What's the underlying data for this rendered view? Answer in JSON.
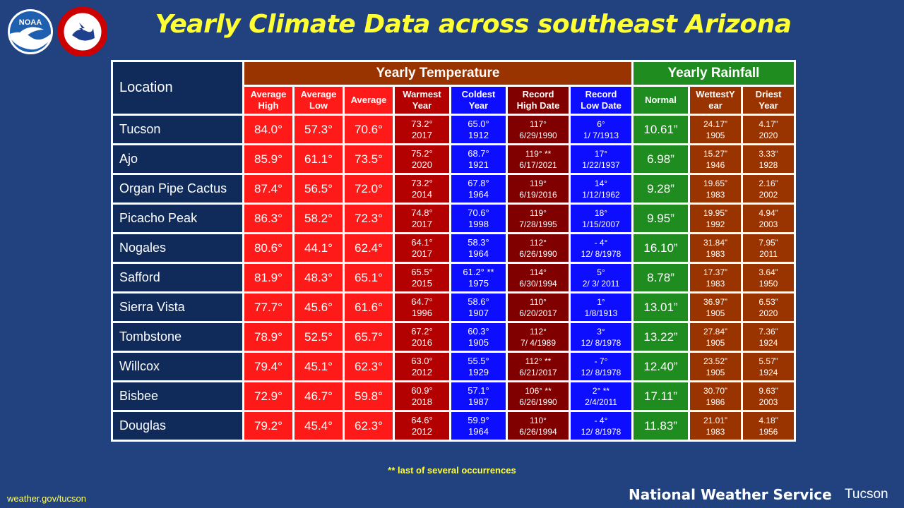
{
  "title": "Yearly Climate Data across southeast Arizona",
  "logos": {
    "noaa_text": "NOAA",
    "nws_text": "NATIONAL WEATHER SERVICE"
  },
  "header": {
    "location": "Location",
    "yearly_temperature": "Yearly Temperature",
    "yearly_rainfall": "Yearly Rainfall",
    "sub": [
      [
        "Average",
        "High"
      ],
      [
        "Average",
        "Low"
      ],
      [
        "Average"
      ],
      [
        "Warmest",
        "Year"
      ],
      [
        "Coldest",
        "Year"
      ],
      [
        "Record",
        "High Date"
      ],
      [
        "Record",
        "Low Date"
      ],
      [
        "Normal"
      ],
      [
        "WettestY",
        "ear"
      ],
      [
        "Driest",
        "Year"
      ]
    ]
  },
  "rows": [
    {
      "location": "Tucson",
      "avg_high": "84.0°",
      "avg_low": "57.3°",
      "average": "70.6°",
      "warmest": [
        "73.2°",
        "2017"
      ],
      "coldest": [
        "65.0°",
        "1912"
      ],
      "rec_high": [
        "117°",
        "6/29/1990"
      ],
      "rec_low": [
        "6°",
        "1/ 7/1913"
      ],
      "normal": "10.61”",
      "wettest": [
        "24.17”",
        "1905"
      ],
      "driest": [
        "4.17”",
        "2020"
      ]
    },
    {
      "location": "Ajo",
      "avg_high": "85.9°",
      "avg_low": "61.1°",
      "average": "73.5°",
      "warmest": [
        "75.2°",
        "2020"
      ],
      "coldest": [
        "68.7°",
        "1921"
      ],
      "rec_high": [
        "119° **",
        "6/17/2021"
      ],
      "rec_low": [
        "17°",
        "1/22/1937"
      ],
      "normal": "6.98”",
      "wettest": [
        "15.27”",
        "1946"
      ],
      "driest": [
        "3.33“",
        "1928"
      ]
    },
    {
      "location": "Organ Pipe Cactus",
      "avg_high": "87.4°",
      "avg_low": "56.5°",
      "average": "72.0°",
      "warmest": [
        "73.2°",
        "2014"
      ],
      "coldest": [
        "67.8°",
        "1964"
      ],
      "rec_high": [
        "119°",
        "6/19/2016"
      ],
      "rec_low": [
        "14°",
        "1/12/1962"
      ],
      "normal": "9.28”",
      "wettest": [
        "19.65”",
        "1983"
      ],
      "driest": [
        "2.16”",
        "2002"
      ]
    },
    {
      "location": "Picacho Peak",
      "avg_high": "86.3°",
      "avg_low": "58.2°",
      "average": "72.3°",
      "warmest": [
        "74.8°",
        "2017"
      ],
      "coldest": [
        "70.6°",
        "1998"
      ],
      "rec_high": [
        "119°",
        "7/28/1995"
      ],
      "rec_low": [
        "18°",
        "1/15/2007"
      ],
      "normal": "9.95”",
      "wettest": [
        "19.95”",
        "1992"
      ],
      "driest": [
        "4.94”",
        "2003"
      ]
    },
    {
      "location": "Nogales",
      "avg_high": "80.6°",
      "avg_low": "44.1°",
      "average": "62.4°",
      "warmest": [
        "64.1°",
        "2017"
      ],
      "coldest": [
        "58.3°",
        "1964"
      ],
      "rec_high": [
        "112°",
        "6/26/1990"
      ],
      "rec_low": [
        "- 4°",
        "12/ 8/1978"
      ],
      "normal": "16.10”",
      "wettest": [
        "31.84”",
        "1983"
      ],
      "driest": [
        "7.95”",
        "2011"
      ]
    },
    {
      "location": "Safford",
      "avg_high": "81.9°",
      "avg_low": "48.3°",
      "average": "65.1°",
      "warmest": [
        "65.5°",
        "2015"
      ],
      "coldest": [
        "61.2° **",
        "1975"
      ],
      "rec_high": [
        "114°",
        "6/30/1994"
      ],
      "rec_low": [
        "5°",
        "2/ 3/ 2011"
      ],
      "normal": "8.78”",
      "wettest": [
        "17.37”",
        "1983"
      ],
      "driest": [
        "3.64”",
        "1950"
      ]
    },
    {
      "location": "Sierra Vista",
      "avg_high": "77.7°",
      "avg_low": "45.6°",
      "average": "61.6°",
      "warmest": [
        "64.7°",
        "1996"
      ],
      "coldest": [
        "58.6°",
        "1907"
      ],
      "rec_high": [
        "110°",
        "6/20/2017"
      ],
      "rec_low": [
        "1°",
        "1/8/1913"
      ],
      "normal": "13.01”",
      "wettest": [
        "36.97”",
        "1905"
      ],
      "driest": [
        "6.53”",
        "2020"
      ]
    },
    {
      "location": "Tombstone",
      "avg_high": "78.9°",
      "avg_low": "52.5°",
      "average": "65.7°",
      "warmest": [
        "67.2°",
        "2016"
      ],
      "coldest": [
        "60.3°",
        "1905"
      ],
      "rec_high": [
        "112°",
        "7/ 4/1989"
      ],
      "rec_low": [
        "3°",
        "12/ 8/1978"
      ],
      "normal": "13.22”",
      "wettest": [
        "27.84”",
        "1905"
      ],
      "driest": [
        "7.36”",
        "1924"
      ]
    },
    {
      "location": "Willcox",
      "avg_high": "79.4°",
      "avg_low": "45.1°",
      "average": "62.3°",
      "warmest": [
        "63.0°",
        "2012"
      ],
      "coldest": [
        "55.5°",
        "1929"
      ],
      "rec_high": [
        "112° **",
        "6/21/2017"
      ],
      "rec_low": [
        "- 7°",
        "12/ 8/1978"
      ],
      "normal": "12.40”",
      "wettest": [
        "23.52”",
        "1905"
      ],
      "driest": [
        "5.57”",
        "1924"
      ]
    },
    {
      "location": "Bisbee",
      "avg_high": "72.9°",
      "avg_low": "46.7°",
      "average": "59.8°",
      "warmest": [
        "60.9°",
        "2018"
      ],
      "coldest": [
        "57.1°",
        "1987"
      ],
      "rec_high": [
        "106° **",
        "6/26/1990"
      ],
      "rec_low": [
        "2° **",
        "2/4/2011"
      ],
      "normal": "17.11”",
      "wettest": [
        "30.70”",
        "1986"
      ],
      "driest": [
        "9.63”",
        "2003"
      ]
    },
    {
      "location": "Douglas",
      "avg_high": "79.2°",
      "avg_low": "45.4°",
      "average": "62.3°",
      "warmest": [
        "64.6°",
        "2012"
      ],
      "coldest": [
        "59.9°",
        "1964"
      ],
      "rec_high": [
        "110°",
        "6/26/1994"
      ],
      "rec_low": [
        "- 4°",
        "12/ 8/1978"
      ],
      "normal": "11.83”",
      "wettest": [
        "21.01”",
        "1983"
      ],
      "driest": [
        "4.18”",
        "1956"
      ]
    }
  ],
  "footnote": "** last of several occurrences",
  "footer": {
    "url": "weather.gov/tucson",
    "agency": "National Weather Service",
    "office": "Tucson"
  },
  "colors": {
    "background": "#21427f",
    "title": "#ffff33",
    "location": "#102a5a",
    "avg_cols": "#ff1a1a",
    "warmest": "#b30000",
    "coldest": "#0d0dff",
    "record_high": "#800000",
    "record_low": "#0d0dff",
    "normal_rain": "#1e8c1e",
    "wettest_driest": "#993300"
  }
}
